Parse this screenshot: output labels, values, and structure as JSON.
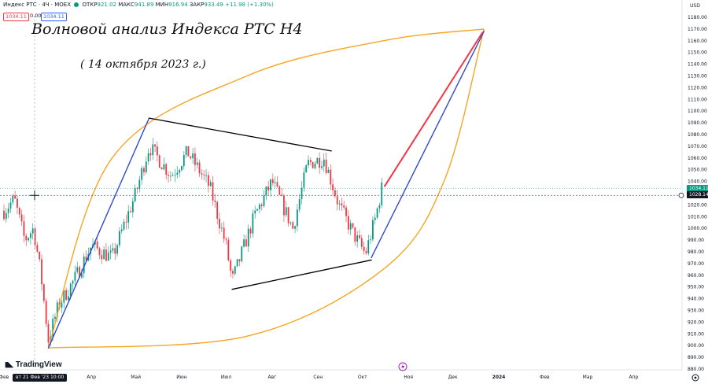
{
  "header": {
    "symbol": "Индекс РТС · 4Ч · MOEX",
    "open_label": "ОТКР",
    "open_value": "921.02",
    "high_label": "МАКС",
    "high_value": "941.89",
    "low_label": "МИН",
    "low_value": "916.94",
    "close_label": "ЗАКР",
    "close_value": "933.49",
    "change": "+11.98 (+1.30%)"
  },
  "order_chips": {
    "bid": "1034.11",
    "spread": "0.00",
    "ask": "1034.11"
  },
  "currency": "USD",
  "annotation": {
    "title": "Волновой анализ Индекса РТС Н4",
    "subtitle": "( 14 октября 2023 г.)"
  },
  "branding": {
    "logo_text": "TradingView"
  },
  "crosshair": {
    "date_label": "вт 21 Фев '23 10:00",
    "price_label": "1028.14",
    "price_value": 1028.14
  },
  "last_price": {
    "label": "1034.11",
    "value": 1034.11
  },
  "colors": {
    "up": "#089981",
    "down": "#f23645",
    "blue_line": "#2f49d1",
    "red_line": "#f23645",
    "orange_curve": "#f5a623",
    "black_line": "#000000",
    "axis_text": "#131722",
    "crosshair": "#089981"
  },
  "chart_data": {
    "type": "candlestick",
    "title": "Волновой анализ Индекса РТС Н4",
    "subtitle": "( 14 октября 2023 г.)",
    "y_axis": {
      "min": 880,
      "max": 1180,
      "step": 10,
      "ticks": [
        "1180.00",
        "1170.00",
        "1160.00",
        "1150.00",
        "1140.00",
        "1130.00",
        "1120.00",
        "1110.00",
        "1100.00",
        "1090.00",
        "1080.00",
        "1070.00",
        "1060.00",
        "1050.00",
        "1040.00",
        "1030.00",
        "1020.00",
        "1010.00",
        "1000.00",
        "990.00",
        "980.00",
        "970.00",
        "960.00",
        "950.00",
        "940.00",
        "930.00",
        "920.00",
        "910.00",
        "900.00",
        "890.00",
        "880.00"
      ]
    },
    "x_axis": {
      "start": "2023-02-01",
      "end": "2024-04-30",
      "ticks": [
        {
          "label": "Фев",
          "date": "2023-02-01",
          "year": false
        },
        {
          "label": "Апр",
          "date": "2023-04-01",
          "year": false
        },
        {
          "label": "Май",
          "date": "2023-05-01",
          "year": false
        },
        {
          "label": "Июн",
          "date": "2023-06-01",
          "year": false
        },
        {
          "label": "Июл",
          "date": "2023-07-01",
          "year": false
        },
        {
          "label": "Авг",
          "date": "2023-08-01",
          "year": false
        },
        {
          "label": "Сен",
          "date": "2023-09-01",
          "year": false
        },
        {
          "label": "Окт",
          "date": "2023-10-01",
          "year": false
        },
        {
          "label": "Ноя",
          "date": "2023-11-01",
          "year": false
        },
        {
          "label": "Дек",
          "date": "2023-12-01",
          "year": false
        },
        {
          "label": "2024",
          "date": "2024-01-01",
          "year": true
        },
        {
          "label": "Фев",
          "date": "2024-02-01",
          "year": false
        },
        {
          "label": "Мар",
          "date": "2024-03-01",
          "year": false
        },
        {
          "label": "Апр",
          "date": "2024-04-01",
          "year": false
        }
      ]
    },
    "price_path": [
      {
        "date": "2023-02-01",
        "price": 1015
      },
      {
        "date": "2023-02-08",
        "price": 1025
      },
      {
        "date": "2023-02-15",
        "price": 990
      },
      {
        "date": "2023-02-21",
        "price": 1000
      },
      {
        "date": "2023-02-26",
        "price": 960
      },
      {
        "date": "2023-03-03",
        "price": 905
      },
      {
        "date": "2023-03-10",
        "price": 935
      },
      {
        "date": "2023-03-20",
        "price": 955
      },
      {
        "date": "2023-04-01",
        "price": 985
      },
      {
        "date": "2023-04-15",
        "price": 975
      },
      {
        "date": "2023-05-01",
        "price": 1030
      },
      {
        "date": "2023-05-10",
        "price": 1070
      },
      {
        "date": "2023-05-25",
        "price": 1045
      },
      {
        "date": "2023-06-05",
        "price": 1065
      },
      {
        "date": "2023-06-20",
        "price": 1035
      },
      {
        "date": "2023-07-01",
        "price": 985
      },
      {
        "date": "2023-07-05",
        "price": 955
      },
      {
        "date": "2023-07-20",
        "price": 1010
      },
      {
        "date": "2023-08-01",
        "price": 1040
      },
      {
        "date": "2023-08-15",
        "price": 1000
      },
      {
        "date": "2023-08-25",
        "price": 1055
      },
      {
        "date": "2023-09-05",
        "price": 1060
      },
      {
        "date": "2023-09-15",
        "price": 1020
      },
      {
        "date": "2023-09-25",
        "price": 995
      },
      {
        "date": "2023-10-03",
        "price": 978
      },
      {
        "date": "2023-10-10",
        "price": 1010
      },
      {
        "date": "2023-10-14",
        "price": 1034
      }
    ],
    "drawings": {
      "blue_wave_1": [
        {
          "date": "2023-03-03",
          "price": 898
        },
        {
          "date": "2023-05-10",
          "price": 1094
        }
      ],
      "blue_wave_2": [
        {
          "date": "2023-10-07",
          "price": 975
        },
        {
          "date": "2023-12-22",
          "price": 1168
        }
      ],
      "red_target": [
        {
          "date": "2023-10-16",
          "price": 1036
        },
        {
          "date": "2023-12-21",
          "price": 1167
        }
      ],
      "triangle_upper": [
        {
          "date": "2023-05-10",
          "price": 1094
        },
        {
          "date": "2023-09-10",
          "price": 1066
        }
      ],
      "triangle_lower": [
        {
          "date": "2023-07-05",
          "price": 948
        },
        {
          "date": "2023-10-07",
          "price": 973
        }
      ],
      "orange_upper": [
        {
          "date": "2023-03-03",
          "price": 898
        },
        {
          "date": "2023-04-15",
          "price": 1060
        },
        {
          "date": "2023-07-15",
          "price": 1130
        },
        {
          "date": "2023-10-15",
          "price": 1160
        },
        {
          "date": "2023-12-22",
          "price": 1170
        }
      ],
      "orange_lower": [
        {
          "date": "2023-03-03",
          "price": 898
        },
        {
          "date": "2023-07-15",
          "price": 908
        },
        {
          "date": "2023-10-15",
          "price": 965
        },
        {
          "date": "2023-11-25",
          "price": 1040
        },
        {
          "date": "2023-12-22",
          "price": 1170
        }
      ]
    },
    "grid": false,
    "legend": "none"
  }
}
